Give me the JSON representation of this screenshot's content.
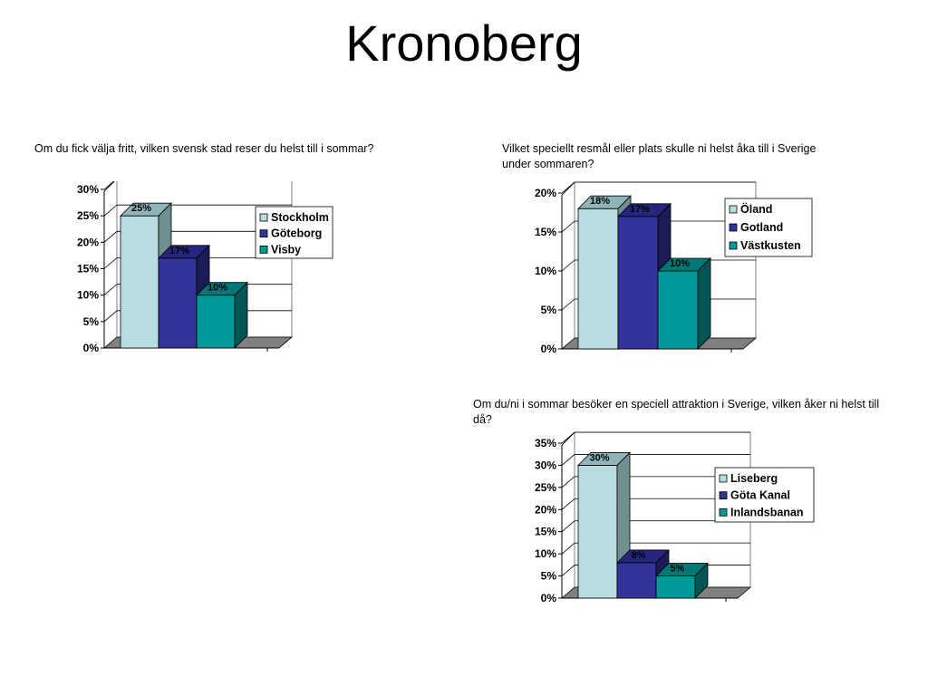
{
  "title": "Kronoberg",
  "charts": [
    {
      "question": "Om du fick välja fritt, vilken svensk stad reser du helst till i sommar?",
      "chart_data": {
        "type": "bar",
        "categories": [
          "Stockholm",
          "Göteborg",
          "Visby"
        ],
        "values": [
          25,
          17,
          10
        ],
        "value_labels": [
          "25%",
          "17%",
          "10%"
        ],
        "yticks": [
          "0%",
          "5%",
          "10%",
          "15%",
          "20%",
          "25%",
          "30%"
        ],
        "ylim": [
          0,
          30
        ],
        "ystep": 5,
        "three_d": true,
        "grid": true,
        "legend": "right"
      }
    },
    {
      "question": "Vilket speciellt resmål eller plats skulle ni helst åka till i Sverige under sommaren?",
      "chart_data": {
        "type": "bar",
        "categories": [
          "Öland",
          "Gotland",
          "Västkusten"
        ],
        "values": [
          18,
          17,
          10
        ],
        "value_labels": [
          "18%",
          "17%",
          "10%"
        ],
        "yticks": [
          "0%",
          "5%",
          "10%",
          "15%",
          "20%"
        ],
        "ylim": [
          0,
          20
        ],
        "ystep": 5,
        "three_d": true,
        "grid": true,
        "legend": "right"
      }
    },
    {
      "question": "Om du/ni i sommar besöker en speciell attraktion i Sverige, vilken åker ni helst till då?",
      "chart_data": {
        "type": "bar",
        "categories": [
          "Liseberg",
          "Göta Kanal",
          "Inlandsbanan"
        ],
        "values": [
          30,
          8,
          5
        ],
        "value_labels": [
          "30%",
          "8%",
          "5%"
        ],
        "yticks": [
          "0%",
          "5%",
          "10%",
          "15%",
          "20%",
          "25%",
          "30%",
          "35%"
        ],
        "ylim": [
          0,
          35
        ],
        "ystep": 5,
        "three_d": true,
        "grid": true,
        "legend": "right"
      }
    }
  ],
  "colors": {
    "series": [
      "#b8dde0",
      "#333399",
      "#009999"
    ],
    "series_top": [
      "#8fb5b8",
      "#262680",
      "#007777"
    ],
    "series_side": [
      "#6f8f91",
      "#1b1b55",
      "#005555"
    ],
    "floor": "#808080",
    "grid": "#000000"
  }
}
